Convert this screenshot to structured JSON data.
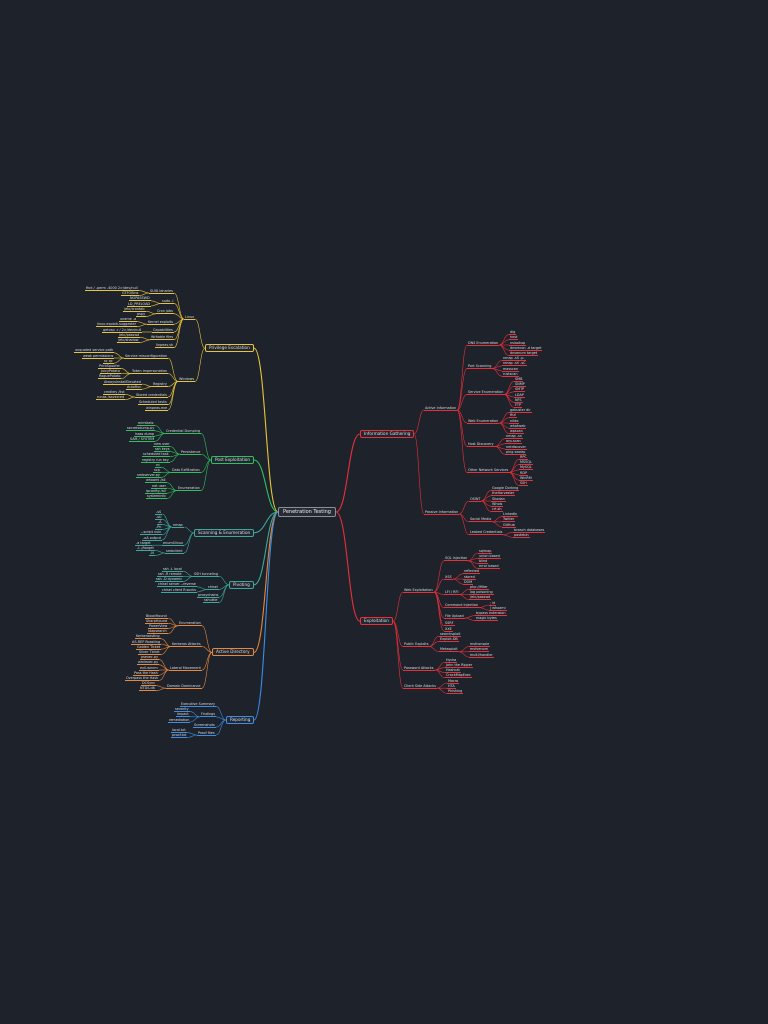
{
  "title": "Penetration Testing",
  "colors": {
    "background": "#1e222a",
    "red": "#e8303a",
    "yellow": "#e8c43a",
    "green": "#2fbf5c",
    "teal": "#3aa89c",
    "orange": "#e8883a",
    "blue": "#3a8ee8",
    "root_border": "#8a9099"
  },
  "branches": [
    {
      "label": "Information Gathering",
      "color": "#e8303a",
      "side": "right",
      "children": [
        {
          "label": "Active Information",
          "children": [
            {
              "label": "DNS Enumeration",
              "children": [
                {
                  "label": "dig"
                },
                {
                  "label": "host"
                },
                {
                  "label": "nslookup"
                },
                {
                  "label": "dnsrecon -d target"
                },
                {
                  "label": "dnsenum target"
                }
              ]
            },
            {
              "label": "Port Scanning",
              "children": [
                {
                  "label": "nmap -sS -p-"
                },
                {
                  "label": "nmap -sV -sC"
                },
                {
                  "label": "masscan"
                },
                {
                  "label": "rustscan"
                }
              ]
            },
            {
              "label": "Service Enumeration",
              "children": [
                {
                  "label": "SMB"
                },
                {
                  "label": "SNMP"
                },
                {
                  "label": "SMTP"
                },
                {
                  "label": "LDAP"
                },
                {
                  "label": "NFS"
                },
                {
                  "label": "FTP"
                }
              ]
            },
            {
              "label": "Web Enumeration",
              "children": [
                {
                  "label": "gobuster dir"
                },
                {
                  "label": "ffuf"
                },
                {
                  "label": "nikto"
                },
                {
                  "label": "whatweb"
                },
                {
                  "label": "wpscan"
                }
              ]
            },
            {
              "label": "Host Discovery",
              "children": [
                {
                  "label": "nmap -sn"
                },
                {
                  "label": "arp-scan"
                },
                {
                  "label": "netdiscover"
                },
                {
                  "label": "ping sweep"
                }
              ]
            },
            {
              "label": "Other Network Services",
              "children": [
                {
                  "label": "RPC"
                },
                {
                  "label": "MSSQL"
                },
                {
                  "label": "MySQL"
                },
                {
                  "label": "RDP"
                },
                {
                  "label": "WinRM"
                },
                {
                  "label": "SSH"
                }
              ]
            }
          ]
        },
        {
          "label": "Passive Information",
          "children": [
            {
              "label": "OSINT",
              "children": [
                {
                  "label": "Google Dorking"
                },
                {
                  "label": "theHarvester"
                },
                {
                  "label": "Shodan"
                },
                {
                  "label": "Whois"
                },
                {
                  "label": "crt.sh"
                }
              ]
            },
            {
              "label": "Social Media",
              "children": [
                {
                  "label": "LinkedIn"
                },
                {
                  "label": "Twitter"
                },
                {
                  "label": "GitHub"
                }
              ]
            },
            {
              "label": "Leaked Credentials",
              "children": [
                {
                  "label": "breach databases"
                },
                {
                  "label": "pastebin"
                }
              ]
            }
          ]
        }
      ]
    },
    {
      "label": "Exploitation",
      "color": "#e8303a",
      "side": "right",
      "children": [
        {
          "label": "Web Exploitation",
          "children": [
            {
              "label": "SQL Injection",
              "children": [
                {
                  "label": "sqlmap"
                },
                {
                  "label": "union based"
                },
                {
                  "label": "blind"
                },
                {
                  "label": "error based"
                }
              ]
            },
            {
              "label": "XSS",
              "children": [
                {
                  "label": "reflected"
                },
                {
                  "label": "stored"
                },
                {
                  "label": "DOM"
                }
              ]
            },
            {
              "label": "LFI / RFI",
              "children": [
                {
                  "label": "php://filter"
                },
                {
                  "label": "log poisoning"
                },
                {
                  "label": "/etc/passwd"
                }
              ]
            },
            {
              "label": "Command Injection",
              "children": [
                {
                  "label": "; id"
                },
                {
                  "label": "| whoami"
                }
              ]
            },
            {
              "label": "File Upload",
              "children": [
                {
                  "label": "bypass extension"
                },
                {
                  "label": "magic bytes"
                }
              ]
            },
            {
              "label": "SSRF"
            },
            {
              "label": "XXE"
            }
          ]
        },
        {
          "label": "Public Exploits",
          "children": [
            {
              "label": "searchsploit"
            },
            {
              "label": "Exploit-DB"
            },
            {
              "label": "Metasploit",
              "children": [
                {
                  "label": "msfconsole"
                },
                {
                  "label": "msfvenom"
                },
                {
                  "label": "multi/handler"
                }
              ]
            }
          ]
        },
        {
          "label": "Password Attacks",
          "children": [
            {
              "label": "Hydra"
            },
            {
              "label": "John the Ripper"
            },
            {
              "label": "Hashcat"
            },
            {
              "label": "CrackMapExec"
            }
          ]
        },
        {
          "label": "Client Side Attacks",
          "children": [
            {
              "label": "Macro"
            },
            {
              "label": "HTA"
            },
            {
              "label": "Phishing"
            }
          ]
        }
      ]
    },
    {
      "label": "Privilege Escalation",
      "color": "#e8c43a",
      "side": "left",
      "children": [
        {
          "label": "Linux",
          "children": [
            {
              "label": "SUID binaries",
              "children": [
                {
                  "label": "find / -perm -4000 2>/dev/null"
                },
                {
                  "label": "GTFOBins"
                }
              ]
            },
            {
              "label": "sudo -l",
              "children": [
                {
                  "label": "NOPASSWD"
                },
                {
                  "label": "LD_PRELOAD"
                }
              ]
            },
            {
              "label": "Cron jobs",
              "children": [
                {
                  "label": "/etc/crontab"
                },
                {
                  "label": "pspy"
                }
              ]
            },
            {
              "label": "Kernel exploits",
              "children": [
                {
                  "label": "uname -a"
                },
                {
                  "label": "linux-exploit-suggester"
                }
              ]
            },
            {
              "label": "Capabilities",
              "children": [
                {
                  "label": "getcap -r / 2>/dev/null"
                }
              ]
            },
            {
              "label": "Writable files",
              "children": [
                {
                  "label": "/etc/passwd"
                },
                {
                  "label": "/etc/shadow"
                }
              ]
            },
            {
              "label": "linpeas.sh"
            }
          ]
        },
        {
          "label": "Windows",
          "children": [
            {
              "label": "Service misconfiguration",
              "children": [
                {
                  "label": "unquoted service path"
                },
                {
                  "label": "weak permissions"
                },
                {
                  "label": "sc qc"
                }
              ]
            },
            {
              "label": "Token impersonation",
              "children": [
                {
                  "label": "PrintSpoofer"
                },
                {
                  "label": "JuicyPotato"
                },
                {
                  "label": "RoguePotato"
                }
              ]
            },
            {
              "label": "Registry",
              "children": [
                {
                  "label": "AlwaysInstallElevated"
                },
                {
                  "label": "AutoRun"
                }
              ]
            },
            {
              "label": "Stored credentials",
              "children": [
                {
                  "label": "cmdkey /list"
                },
                {
                  "label": "runas /savecred"
                }
              ]
            },
            {
              "label": "Scheduled tasks"
            },
            {
              "label": "winpeas.exe"
            }
          ]
        }
      ]
    },
    {
      "label": "Post Exploitation",
      "color": "#2fbf5c",
      "side": "left",
      "children": [
        {
          "label": "Credential Dumping",
          "children": [
            {
              "label": "mimikatz"
            },
            {
              "label": "secretsdump.py"
            },
            {
              "label": "lsass dump"
            },
            {
              "label": "SAM / SYSTEM"
            }
          ]
        },
        {
          "label": "Persistence",
          "children": [
            {
              "label": "new user"
            },
            {
              "label": "ssh keys"
            },
            {
              "label": "scheduled task"
            },
            {
              "label": "registry run key"
            }
          ]
        },
        {
          "label": "Data Exfiltration",
          "children": [
            {
              "label": "nc"
            },
            {
              "label": "scp"
            },
            {
              "label": "smbserver.py"
            }
          ]
        },
        {
          "label": "Enumeration",
          "children": [
            {
              "label": "whoami /all"
            },
            {
              "label": "net user"
            },
            {
              "label": "ipconfig /all"
            },
            {
              "label": "systeminfo"
            }
          ]
        }
      ]
    },
    {
      "label": "Scanning & Enumeration",
      "color": "#3aa89c",
      "side": "left",
      "children": [
        {
          "label": "nmap",
          "children": [
            {
              "label": "-sS"
            },
            {
              "label": "-sU"
            },
            {
              "label": "-A"
            },
            {
              "label": "-Pn"
            },
            {
              "label": "--script vuln"
            },
            {
              "label": "-oA output"
            }
          ]
        },
        {
          "label": "enum4linux",
          "children": [
            {
              "label": "-a target"
            }
          ]
        },
        {
          "label": "smbclient",
          "children": [
            {
              "label": "-L //target"
            },
            {
              "label": "-N"
            }
          ]
        }
      ]
    },
    {
      "label": "Pivoting",
      "color": "#3aa89c",
      "side": "left",
      "children": [
        {
          "label": "SSH tunneling",
          "children": [
            {
              "label": "ssh -L local"
            },
            {
              "label": "ssh -R remote"
            },
            {
              "label": "ssh -D dynamic"
            }
          ]
        },
        {
          "label": "chisel",
          "children": [
            {
              "label": "chisel server --reverse"
            },
            {
              "label": "chisel client R:socks"
            }
          ]
        },
        {
          "label": "proxychains"
        },
        {
          "label": "sshuttle"
        }
      ]
    },
    {
      "label": "Active Directory",
      "color": "#e8883a",
      "side": "left",
      "children": [
        {
          "label": "Enumeration",
          "children": [
            {
              "label": "BloodHound"
            },
            {
              "label": "SharpHound"
            },
            {
              "label": "PowerView"
            },
            {
              "label": "ldapsearch"
            }
          ]
        },
        {
          "label": "Kerberos Attacks",
          "children": [
            {
              "label": "Kerberoasting"
            },
            {
              "label": "AS-REP Roasting"
            },
            {
              "label": "Golden Ticket"
            },
            {
              "label": "Silver Ticket"
            }
          ]
        },
        {
          "label": "Lateral Movement",
          "children": [
            {
              "label": "psexec.py"
            },
            {
              "label": "wmiexec.py"
            },
            {
              "label": "evil-winrm"
            },
            {
              "label": "Pass the Hash"
            },
            {
              "label": "Overpass the Hash"
            }
          ]
        },
        {
          "label": "Domain Dominance",
          "children": [
            {
              "label": "DCSync"
            },
            {
              "label": "NTDS.dit"
            }
          ]
        }
      ]
    },
    {
      "label": "Reporting",
      "color": "#3a8ee8",
      "side": "left",
      "children": [
        {
          "label": "Executive Summary"
        },
        {
          "label": "Findings",
          "children": [
            {
              "label": "severity"
            },
            {
              "label": "impact"
            },
            {
              "label": "remediation"
            }
          ]
        },
        {
          "label": "Screenshots"
        },
        {
          "label": "Proof files",
          "children": [
            {
              "label": "local.txt"
            },
            {
              "label": "proof.txt"
            }
          ]
        }
      ]
    }
  ]
}
